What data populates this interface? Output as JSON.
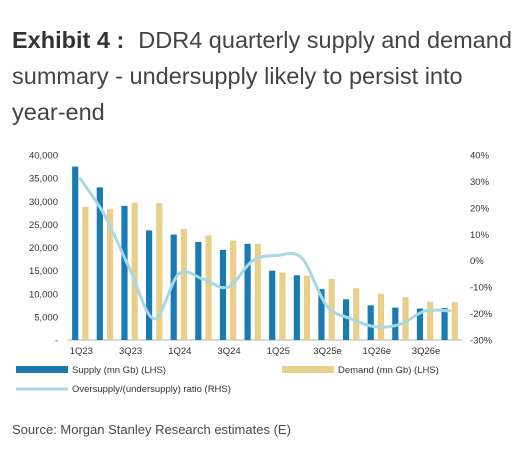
{
  "exhibit": {
    "label": "Exhibit 4",
    "separator": ":",
    "title": "DDR4 quarterly supply and demand summary - undersupply likely to persist into year-end",
    "source": "Source: Morgan Stanley Research estimates (E)"
  },
  "colors": {
    "supply": "#1a7bb0",
    "demand": "#e8cf8a",
    "ratio": "#a8d8e4"
  },
  "chart_data": {
    "type": "bar",
    "categories": [
      "1Q23",
      "2Q23",
      "3Q23",
      "4Q23",
      "1Q24",
      "2Q24",
      "3Q24",
      "4Q24",
      "1Q25",
      "2Q25",
      "3Q25e",
      "4Q25e",
      "1Q26e",
      "2Q26e",
      "3Q26e",
      "4Q26e"
    ],
    "x_tick_labels": [
      "1Q23",
      "3Q23",
      "1Q24",
      "3Q24",
      "1Q25",
      "3Q25e",
      "1Q26e",
      "3Q26e"
    ],
    "series": [
      {
        "name": "Supply (mn Gb) (LHS)",
        "type": "bar",
        "axis": "left",
        "values": [
          37500,
          33000,
          29000,
          23700,
          22800,
          21200,
          19500,
          20800,
          15000,
          14000,
          11000,
          8800,
          7500,
          7000,
          6800,
          6900
        ]
      },
      {
        "name": "Demand (mn Gb) (LHS)",
        "type": "bar",
        "axis": "left",
        "values": [
          28800,
          28300,
          29700,
          29600,
          24000,
          22600,
          21500,
          20800,
          14600,
          13900,
          13200,
          11200,
          10000,
          9300,
          8300,
          8200
        ]
      },
      {
        "name": "Oversupply/(undersupply) ratio (RHS)",
        "type": "line",
        "axis": "right",
        "values": [
          31,
          17,
          -3,
          -22,
          -5,
          -7,
          -10,
          0,
          2,
          1,
          -17,
          -22,
          -25,
          -24,
          -19,
          -19
        ]
      }
    ],
    "left_axis": {
      "min": 0,
      "max": 40000,
      "step": 5000,
      "tick_labels": [
        "-",
        "5,000",
        "10,000",
        "15,000",
        "20,000",
        "25,000",
        "30,000",
        "35,000",
        "40,000"
      ]
    },
    "right_axis": {
      "min": -30,
      "max": 40,
      "step": 10,
      "tick_labels": [
        "-30%",
        "-20%",
        "-10%",
        "0%",
        "10%",
        "20%",
        "30%",
        "40%"
      ]
    },
    "legend_position": "bottom"
  }
}
